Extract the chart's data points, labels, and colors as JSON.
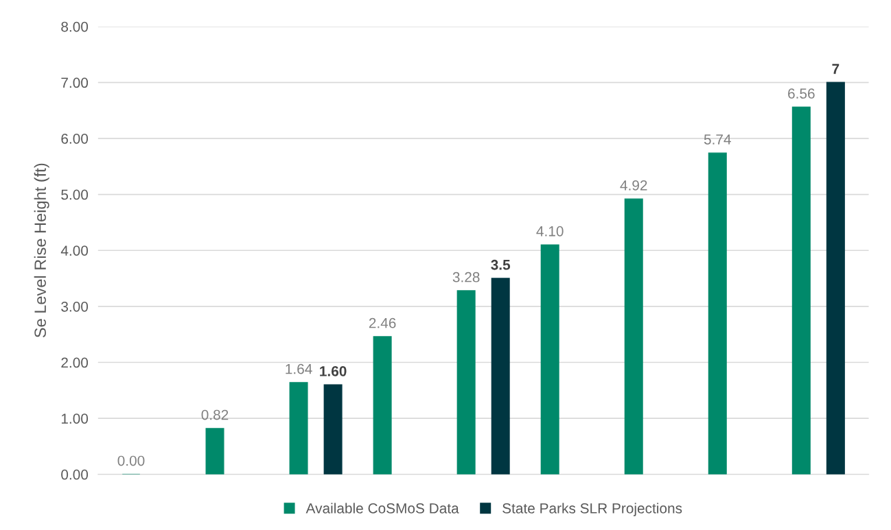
{
  "chart_data": {
    "type": "bar",
    "ylabel": "Se Level Rise Height (ft)",
    "categories": [
      null,
      null,
      null,
      null,
      null,
      null,
      null,
      null,
      null
    ],
    "series": [
      {
        "name": "Available CoSMoS Data",
        "color": "#00896a",
        "values": [
          0.0,
          0.82,
          1.64,
          2.46,
          3.28,
          4.1,
          4.92,
          5.74,
          6.56
        ],
        "value_labels": [
          "0.00",
          "0.82",
          "1.64",
          "2.46",
          "3.28",
          "4.10",
          "4.92",
          "5.74",
          "6.56"
        ]
      },
      {
        "name": "State Parks SLR Projections",
        "color": "#003641",
        "values": [
          null,
          null,
          1.6,
          null,
          3.5,
          null,
          null,
          null,
          7
        ],
        "value_labels": [
          null,
          null,
          "1.60",
          null,
          "3.5",
          null,
          null,
          null,
          "7"
        ]
      }
    ],
    "ylim": [
      0,
      8
    ],
    "yticks": [
      {
        "value": 0,
        "label": "0.00"
      },
      {
        "value": 1,
        "label": "1.00"
      },
      {
        "value": 2,
        "label": "2.00"
      },
      {
        "value": 3,
        "label": "3.00"
      },
      {
        "value": 4,
        "label": "4.00"
      },
      {
        "value": 5,
        "label": "5.00"
      },
      {
        "value": 6,
        "label": "6.00"
      },
      {
        "value": 7,
        "label": "7.00"
      },
      {
        "value": 8,
        "label": "8.00"
      }
    ],
    "grid": "y",
    "legend": "bottom",
    "tick_labels": "y"
  }
}
